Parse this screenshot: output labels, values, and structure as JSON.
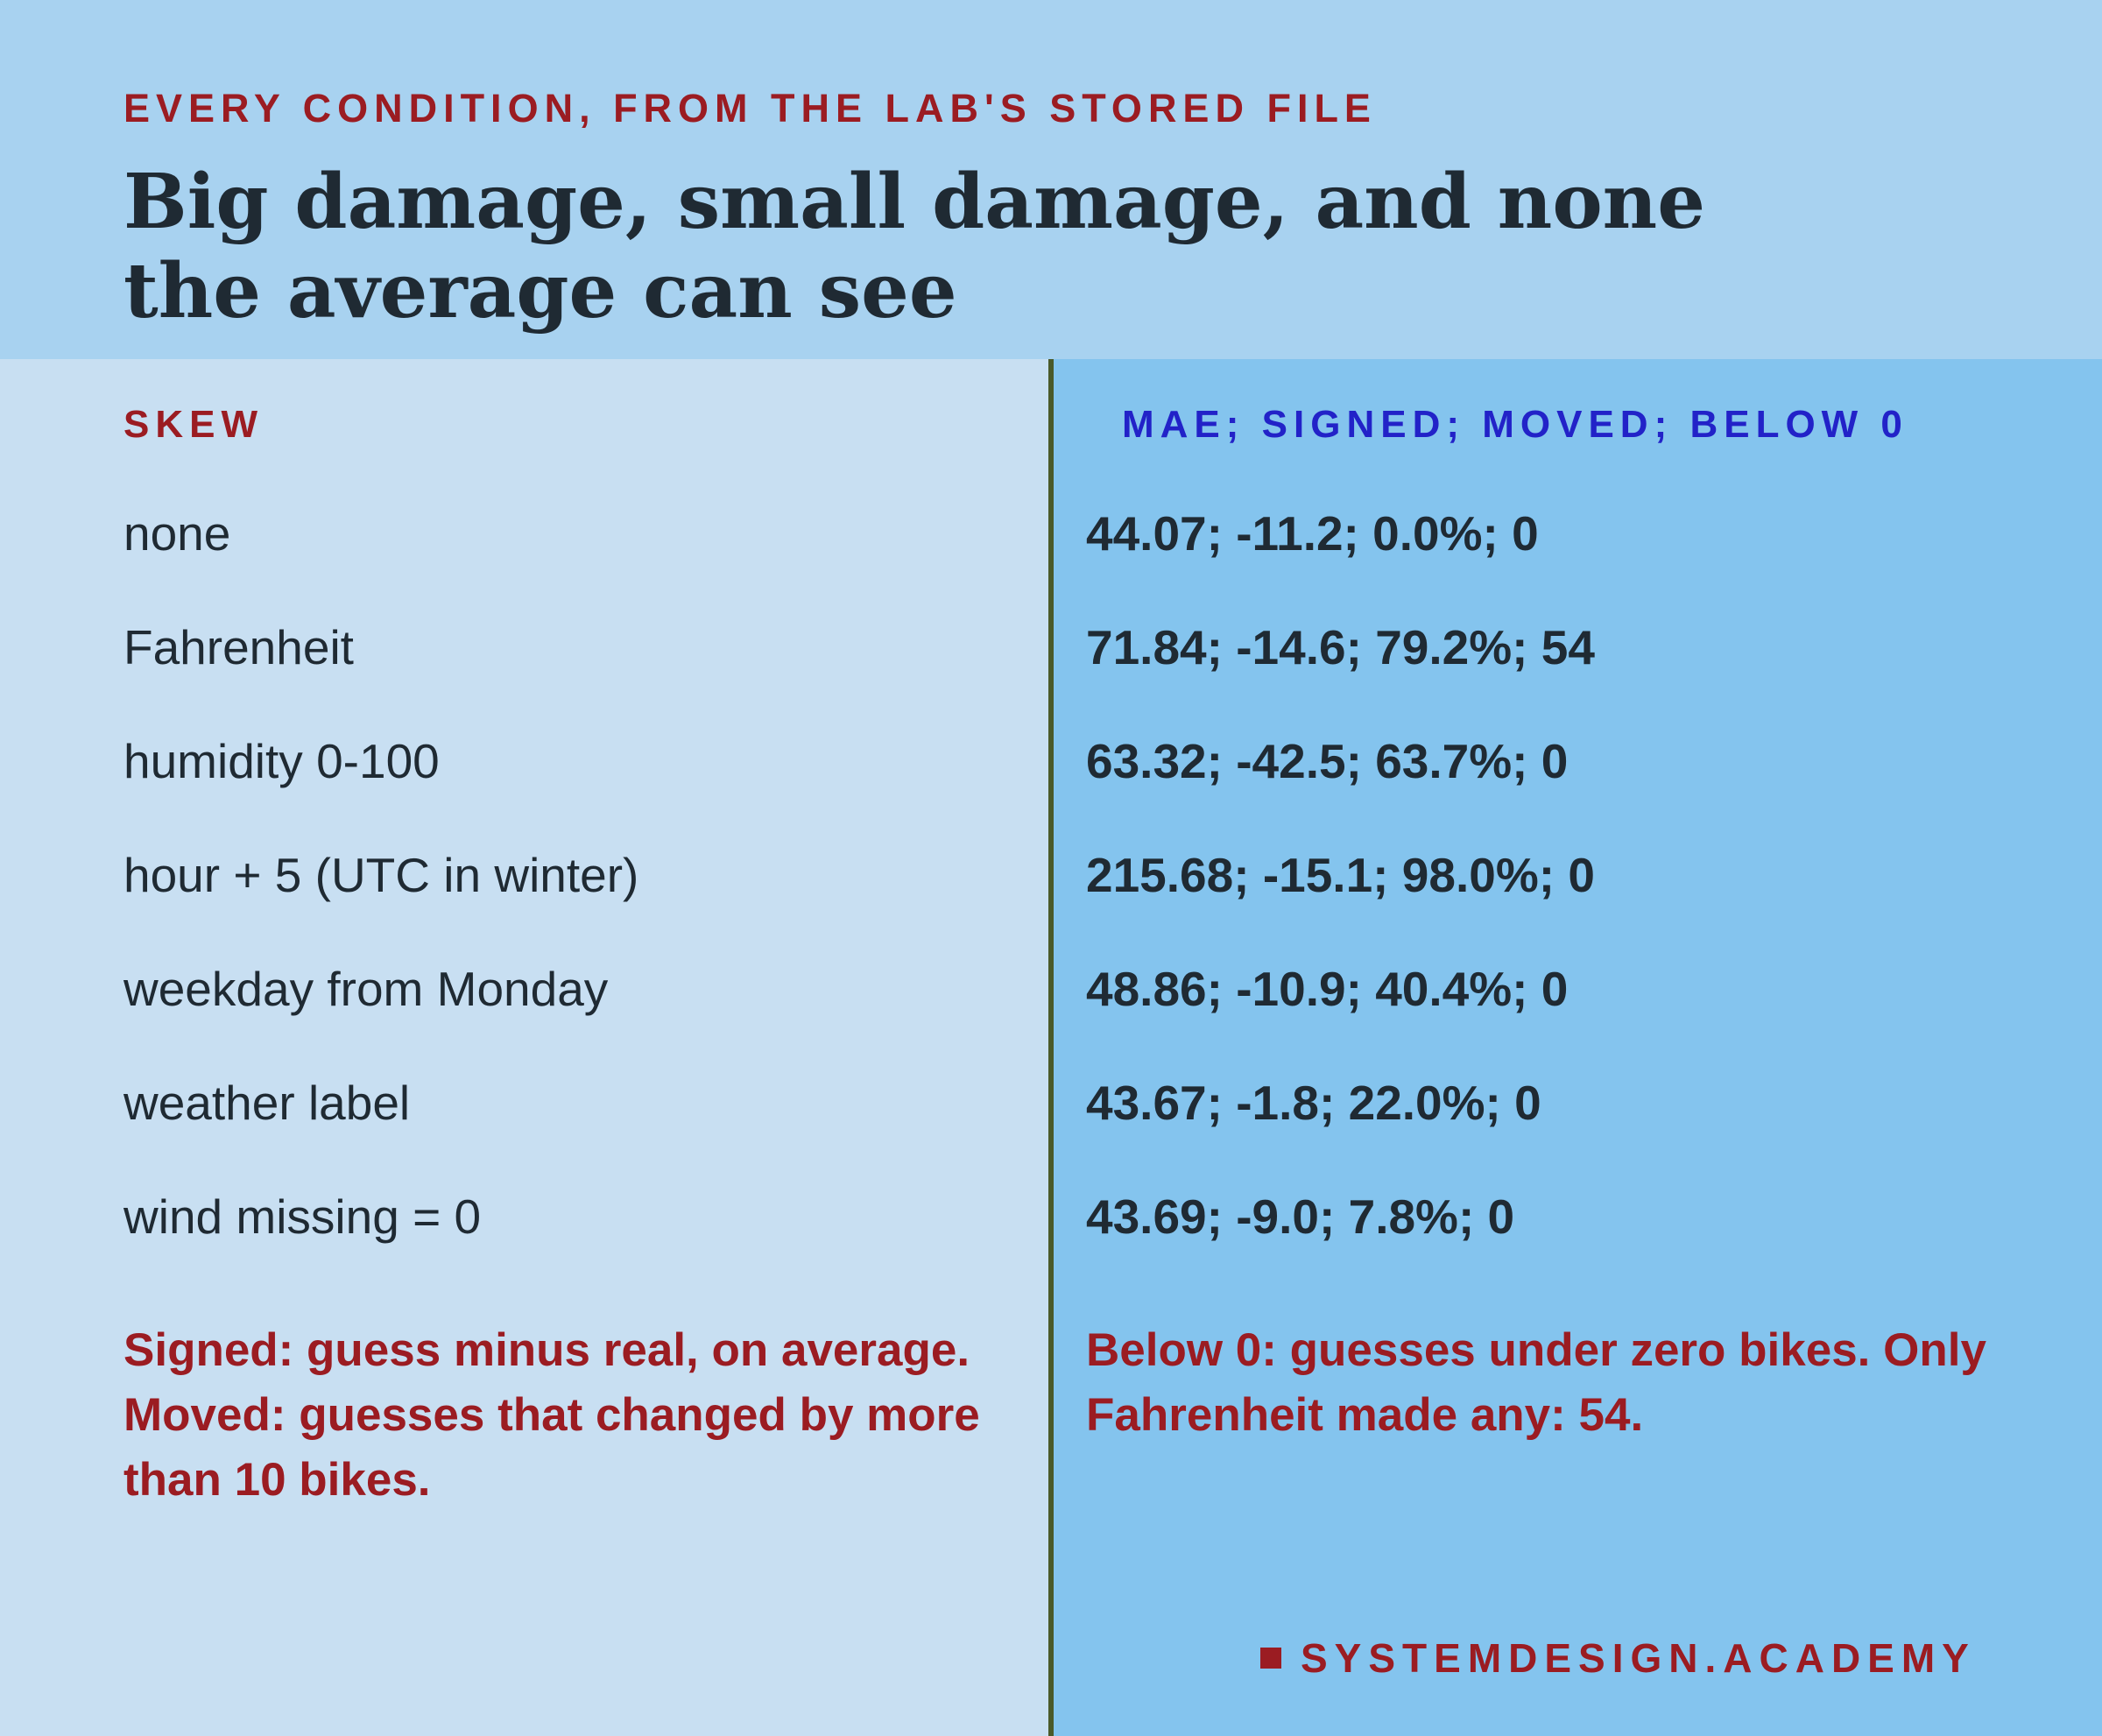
{
  "header": {
    "kicker": "EVERY CONDITION, FROM THE LAB'S STORED FILE",
    "title": "Big damage, small damage, and none the average can see"
  },
  "table": {
    "headers": [
      "SKEW",
      "MAE; SIGNED; MOVED; BELOW 0"
    ],
    "rows": [
      [
        "none",
        "44.07; -11.2; 0.0%; 0"
      ],
      [
        "Fahrenheit",
        "71.84; -14.6; 79.2%; 54"
      ],
      [
        "humidity 0-100",
        "63.32; -42.5; 63.7%; 0"
      ],
      [
        "hour + 5 (UTC in winter)",
        "215.68; -15.1; 98.0%; 0"
      ],
      [
        "weekday from Monday",
        "48.86; -10.9; 40.4%; 0"
      ],
      [
        "weather label",
        "43.67; -1.8; 22.0%; 0"
      ],
      [
        "wind missing = 0",
        "43.69; -9.0; 7.8%; 0"
      ]
    ]
  },
  "notes": {
    "left": "Signed: guess minus real, on average. Moved: guesses that changed by more than 10 bikes.",
    "right": "Below 0: guesses under zero bikes. Only Fahrenheit made any: 54."
  },
  "footer": {
    "brand": "SYSTEMDESIGN.ACADEMY"
  }
}
